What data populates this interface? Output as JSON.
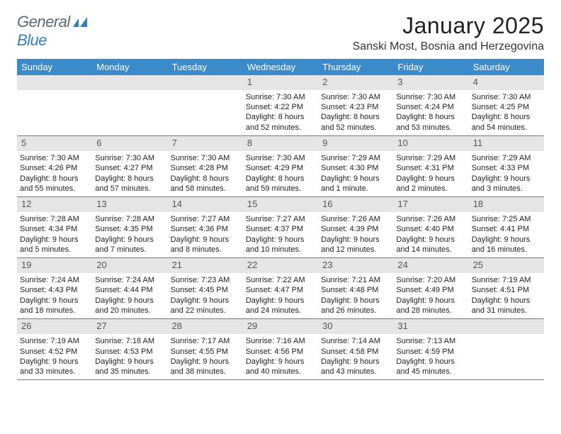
{
  "logo": {
    "word1": "General",
    "word2": "Blue"
  },
  "header": {
    "month_title": "January 2025",
    "location": "Sanski Most, Bosnia and Herzegovina"
  },
  "colors": {
    "header_bar": "#3b8aca",
    "day_number_bg": "#e5e5e5",
    "day_number_fg": "#555555",
    "logo_gray": "#5a6770",
    "logo_blue": "#2f7fbf",
    "rule": "#3b8aca"
  },
  "day_names": [
    "Sunday",
    "Monday",
    "Tuesday",
    "Wednesday",
    "Thursday",
    "Friday",
    "Saturday"
  ],
  "weeks": [
    [
      {
        "n": "",
        "sunrise": "",
        "sunset": "",
        "daylight": ""
      },
      {
        "n": "",
        "sunrise": "",
        "sunset": "",
        "daylight": ""
      },
      {
        "n": "",
        "sunrise": "",
        "sunset": "",
        "daylight": ""
      },
      {
        "n": "1",
        "sunrise": "Sunrise: 7:30 AM",
        "sunset": "Sunset: 4:22 PM",
        "daylight": "Daylight: 8 hours and 52 minutes."
      },
      {
        "n": "2",
        "sunrise": "Sunrise: 7:30 AM",
        "sunset": "Sunset: 4:23 PM",
        "daylight": "Daylight: 8 hours and 52 minutes."
      },
      {
        "n": "3",
        "sunrise": "Sunrise: 7:30 AM",
        "sunset": "Sunset: 4:24 PM",
        "daylight": "Daylight: 8 hours and 53 minutes."
      },
      {
        "n": "4",
        "sunrise": "Sunrise: 7:30 AM",
        "sunset": "Sunset: 4:25 PM",
        "daylight": "Daylight: 8 hours and 54 minutes."
      }
    ],
    [
      {
        "n": "5",
        "sunrise": "Sunrise: 7:30 AM",
        "sunset": "Sunset: 4:26 PM",
        "daylight": "Daylight: 8 hours and 55 minutes."
      },
      {
        "n": "6",
        "sunrise": "Sunrise: 7:30 AM",
        "sunset": "Sunset: 4:27 PM",
        "daylight": "Daylight: 8 hours and 57 minutes."
      },
      {
        "n": "7",
        "sunrise": "Sunrise: 7:30 AM",
        "sunset": "Sunset: 4:28 PM",
        "daylight": "Daylight: 8 hours and 58 minutes."
      },
      {
        "n": "8",
        "sunrise": "Sunrise: 7:30 AM",
        "sunset": "Sunset: 4:29 PM",
        "daylight": "Daylight: 8 hours and 59 minutes."
      },
      {
        "n": "9",
        "sunrise": "Sunrise: 7:29 AM",
        "sunset": "Sunset: 4:30 PM",
        "daylight": "Daylight: 9 hours and 1 minute."
      },
      {
        "n": "10",
        "sunrise": "Sunrise: 7:29 AM",
        "sunset": "Sunset: 4:31 PM",
        "daylight": "Daylight: 9 hours and 2 minutes."
      },
      {
        "n": "11",
        "sunrise": "Sunrise: 7:29 AM",
        "sunset": "Sunset: 4:33 PM",
        "daylight": "Daylight: 9 hours and 3 minutes."
      }
    ],
    [
      {
        "n": "12",
        "sunrise": "Sunrise: 7:28 AM",
        "sunset": "Sunset: 4:34 PM",
        "daylight": "Daylight: 9 hours and 5 minutes."
      },
      {
        "n": "13",
        "sunrise": "Sunrise: 7:28 AM",
        "sunset": "Sunset: 4:35 PM",
        "daylight": "Daylight: 9 hours and 7 minutes."
      },
      {
        "n": "14",
        "sunrise": "Sunrise: 7:27 AM",
        "sunset": "Sunset: 4:36 PM",
        "daylight": "Daylight: 9 hours and 8 minutes."
      },
      {
        "n": "15",
        "sunrise": "Sunrise: 7:27 AM",
        "sunset": "Sunset: 4:37 PM",
        "daylight": "Daylight: 9 hours and 10 minutes."
      },
      {
        "n": "16",
        "sunrise": "Sunrise: 7:26 AM",
        "sunset": "Sunset: 4:39 PM",
        "daylight": "Daylight: 9 hours and 12 minutes."
      },
      {
        "n": "17",
        "sunrise": "Sunrise: 7:26 AM",
        "sunset": "Sunset: 4:40 PM",
        "daylight": "Daylight: 9 hours and 14 minutes."
      },
      {
        "n": "18",
        "sunrise": "Sunrise: 7:25 AM",
        "sunset": "Sunset: 4:41 PM",
        "daylight": "Daylight: 9 hours and 16 minutes."
      }
    ],
    [
      {
        "n": "19",
        "sunrise": "Sunrise: 7:24 AM",
        "sunset": "Sunset: 4:43 PM",
        "daylight": "Daylight: 9 hours and 18 minutes."
      },
      {
        "n": "20",
        "sunrise": "Sunrise: 7:24 AM",
        "sunset": "Sunset: 4:44 PM",
        "daylight": "Daylight: 9 hours and 20 minutes."
      },
      {
        "n": "21",
        "sunrise": "Sunrise: 7:23 AM",
        "sunset": "Sunset: 4:45 PM",
        "daylight": "Daylight: 9 hours and 22 minutes."
      },
      {
        "n": "22",
        "sunrise": "Sunrise: 7:22 AM",
        "sunset": "Sunset: 4:47 PM",
        "daylight": "Daylight: 9 hours and 24 minutes."
      },
      {
        "n": "23",
        "sunrise": "Sunrise: 7:21 AM",
        "sunset": "Sunset: 4:48 PM",
        "daylight": "Daylight: 9 hours and 26 minutes."
      },
      {
        "n": "24",
        "sunrise": "Sunrise: 7:20 AM",
        "sunset": "Sunset: 4:49 PM",
        "daylight": "Daylight: 9 hours and 28 minutes."
      },
      {
        "n": "25",
        "sunrise": "Sunrise: 7:19 AM",
        "sunset": "Sunset: 4:51 PM",
        "daylight": "Daylight: 9 hours and 31 minutes."
      }
    ],
    [
      {
        "n": "26",
        "sunrise": "Sunrise: 7:19 AM",
        "sunset": "Sunset: 4:52 PM",
        "daylight": "Daylight: 9 hours and 33 minutes."
      },
      {
        "n": "27",
        "sunrise": "Sunrise: 7:18 AM",
        "sunset": "Sunset: 4:53 PM",
        "daylight": "Daylight: 9 hours and 35 minutes."
      },
      {
        "n": "28",
        "sunrise": "Sunrise: 7:17 AM",
        "sunset": "Sunset: 4:55 PM",
        "daylight": "Daylight: 9 hours and 38 minutes."
      },
      {
        "n": "29",
        "sunrise": "Sunrise: 7:16 AM",
        "sunset": "Sunset: 4:56 PM",
        "daylight": "Daylight: 9 hours and 40 minutes."
      },
      {
        "n": "30",
        "sunrise": "Sunrise: 7:14 AM",
        "sunset": "Sunset: 4:58 PM",
        "daylight": "Daylight: 9 hours and 43 minutes."
      },
      {
        "n": "31",
        "sunrise": "Sunrise: 7:13 AM",
        "sunset": "Sunset: 4:59 PM",
        "daylight": "Daylight: 9 hours and 45 minutes."
      },
      {
        "n": "",
        "sunrise": "",
        "sunset": "",
        "daylight": ""
      }
    ]
  ]
}
